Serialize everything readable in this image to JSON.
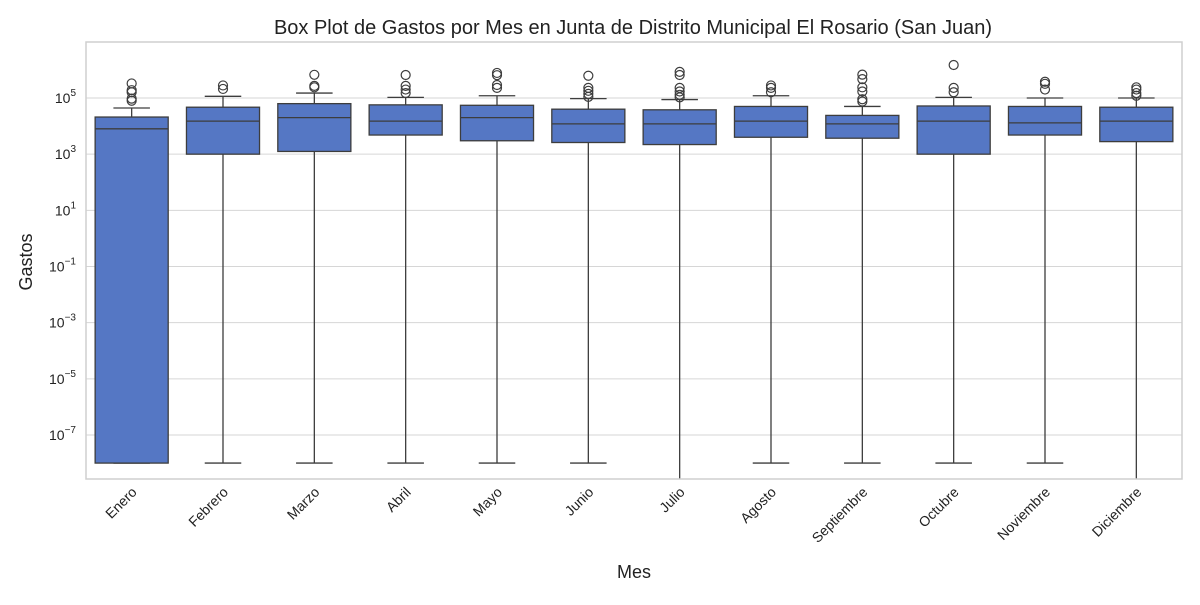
{
  "chart_data": {
    "type": "box",
    "title": "Box Plot de Gastos por Mes en Junta de Distrito Municipal El Rosario (San Juan)",
    "xlabel": "Mes",
    "ylabel": "Gastos",
    "yscale": "log",
    "ylim": [
      4e-09,
      10000000.0
    ],
    "yticks": [
      {
        "base": "10",
        "exp": "5",
        "value": 100000.0
      },
      {
        "base": "10",
        "exp": "3",
        "value": 1000.0
      },
      {
        "base": "10",
        "exp": "1",
        "value": 10.0
      },
      {
        "base": "10",
        "exp": "−1",
        "value": 0.1
      },
      {
        "base": "10",
        "exp": "−3",
        "value": 0.001
      },
      {
        "base": "10",
        "exp": "−5",
        "value": 1e-05
      },
      {
        "base": "10",
        "exp": "−7",
        "value": 1e-07
      }
    ],
    "grid": true,
    "colors": {
      "box": "#5577c4",
      "line": "#3d3d3d",
      "grid": "#d6d6d6",
      "frame": "#cfcfcf",
      "text": "#222222"
    },
    "categories": [
      "Enero",
      "Febrero",
      "Marzo",
      "Abril",
      "Mayo",
      "Junio",
      "Julio",
      "Agosto",
      "Septiembre",
      "Octubre",
      "Noviembre",
      "Diciembre"
    ],
    "boxes": [
      {
        "whislo": 1e-08,
        "q1": 1e-08,
        "med": 8000,
        "q3": 21000,
        "whishi": 44000,
        "fliers": [
          330000,
          190000,
          160000,
          95000,
          80000
        ]
      },
      {
        "whislo": 1e-08,
        "q1": 1000,
        "med": 15000,
        "q3": 47000,
        "whishi": 115000,
        "fliers": [
          280000,
          210000
        ]
      },
      {
        "whislo": 1e-08,
        "q1": 1250,
        "med": 20000,
        "q3": 63000,
        "whishi": 150000,
        "fliers": [
          670000,
          270000,
          240000
        ]
      },
      {
        "whislo": 1e-08,
        "q1": 4800,
        "med": 15000,
        "q3": 57000,
        "whishi": 105000,
        "fliers": [
          660000,
          270000,
          200000,
          150000
        ]
      },
      {
        "whislo": 1e-08,
        "q1": 3000,
        "med": 20000,
        "q3": 55000,
        "whishi": 120000,
        "fliers": [
          780000,
          650000,
          290000,
          230000
        ]
      },
      {
        "whislo": 1e-08,
        "q1": 2600,
        "med": 12000,
        "q3": 40000,
        "whishi": 95000,
        "fliers": [
          620000,
          230000,
          180000,
          140000,
          110000
        ]
      },
      {
        "whislo": 2e-09,
        "q1": 2200,
        "med": 12000,
        "q3": 38000,
        "whishi": 88000,
        "fliers": [
          850000,
          660000,
          230000,
          170000,
          130000,
          105000
        ]
      },
      {
        "whislo": 1e-08,
        "q1": 4000,
        "med": 15000,
        "q3": 50000,
        "whishi": 120000,
        "fliers": [
          280000,
          230000,
          160000
        ]
      },
      {
        "whislo": 1e-08,
        "q1": 3700,
        "med": 12000,
        "q3": 24000,
        "whishi": 50000,
        "fliers": [
          680000,
          470000,
          240000,
          170000,
          90000,
          75000
        ]
      },
      {
        "whislo": 1e-08,
        "q1": 1000,
        "med": 15000,
        "q3": 52000,
        "whishi": 105000,
        "fliers": [
          1500000,
          230000,
          160000
        ]
      },
      {
        "whislo": 1e-08,
        "q1": 4800,
        "med": 13000,
        "q3": 50000,
        "whishi": 100000,
        "fliers": [
          380000,
          320000,
          200000
        ]
      },
      {
        "whislo": 2e-09,
        "q1": 2800,
        "med": 15000,
        "q3": 47000,
        "whishi": 100000,
        "fliers": [
          240000,
          200000,
          150000,
          120000
        ]
      }
    ]
  }
}
